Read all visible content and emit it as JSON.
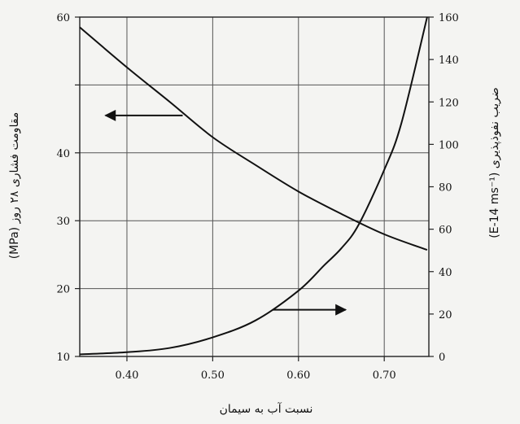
{
  "chart_data": {
    "type": "line",
    "xlabel": "نسبت آب به سیمان",
    "ylabel_left": "مقاومت فشاری ۲۸ روز (MPa)",
    "ylabel_right": "ضریب نفوذپذیری (E-14 ms⁻¹)",
    "xlim": [
      0.345,
      0.752
    ],
    "ylim_left": [
      10,
      60
    ],
    "ylim_right": [
      0,
      160
    ],
    "x_ticks": [
      0.4,
      0.5,
      0.6,
      0.7
    ],
    "x_tick_labels": [
      "0.40",
      "0.50",
      "0.60",
      "0.70"
    ],
    "y_left_ticks": [
      10,
      20,
      30,
      40,
      50,
      60
    ],
    "y_left_tick_labels": [
      "10",
      "20",
      "30",
      "40",
      "",
      "60"
    ],
    "y_right_ticks": [
      0,
      20,
      40,
      60,
      80,
      100,
      120,
      140,
      160
    ],
    "y_right_tick_labels": [
      "0",
      "20",
      "40",
      "60",
      "80",
      "100",
      "120",
      "140",
      "160"
    ],
    "grid": true,
    "series": [
      {
        "axis": "left",
        "x": [
          0.345,
          0.4,
          0.45,
          0.5,
          0.55,
          0.6,
          0.65,
          0.7,
          0.75
        ],
        "y": [
          58.5,
          52.6,
          47.5,
          42.3,
          38.2,
          34.3,
          31.0,
          28.0,
          25.7
        ]
      },
      {
        "axis": "right",
        "x": [
          0.345,
          0.4,
          0.45,
          0.5,
          0.55,
          0.6,
          0.63,
          0.65,
          0.67,
          0.7,
          0.72,
          0.75
        ],
        "y": [
          1,
          2,
          4,
          9,
          17,
          31,
          43,
          51,
          62,
          88,
          110,
          160
        ]
      }
    ],
    "annotations": [
      {
        "type": "arrow",
        "direction": "left",
        "points_to_axis": "left",
        "from": [
          0.465,
          45.5
        ],
        "to": [
          0.375,
          45.5
        ]
      },
      {
        "type": "arrow",
        "direction": "right",
        "points_to_axis": "right",
        "from": [
          0.57,
          22
        ],
        "to": [
          0.655,
          22
        ]
      }
    ]
  }
}
